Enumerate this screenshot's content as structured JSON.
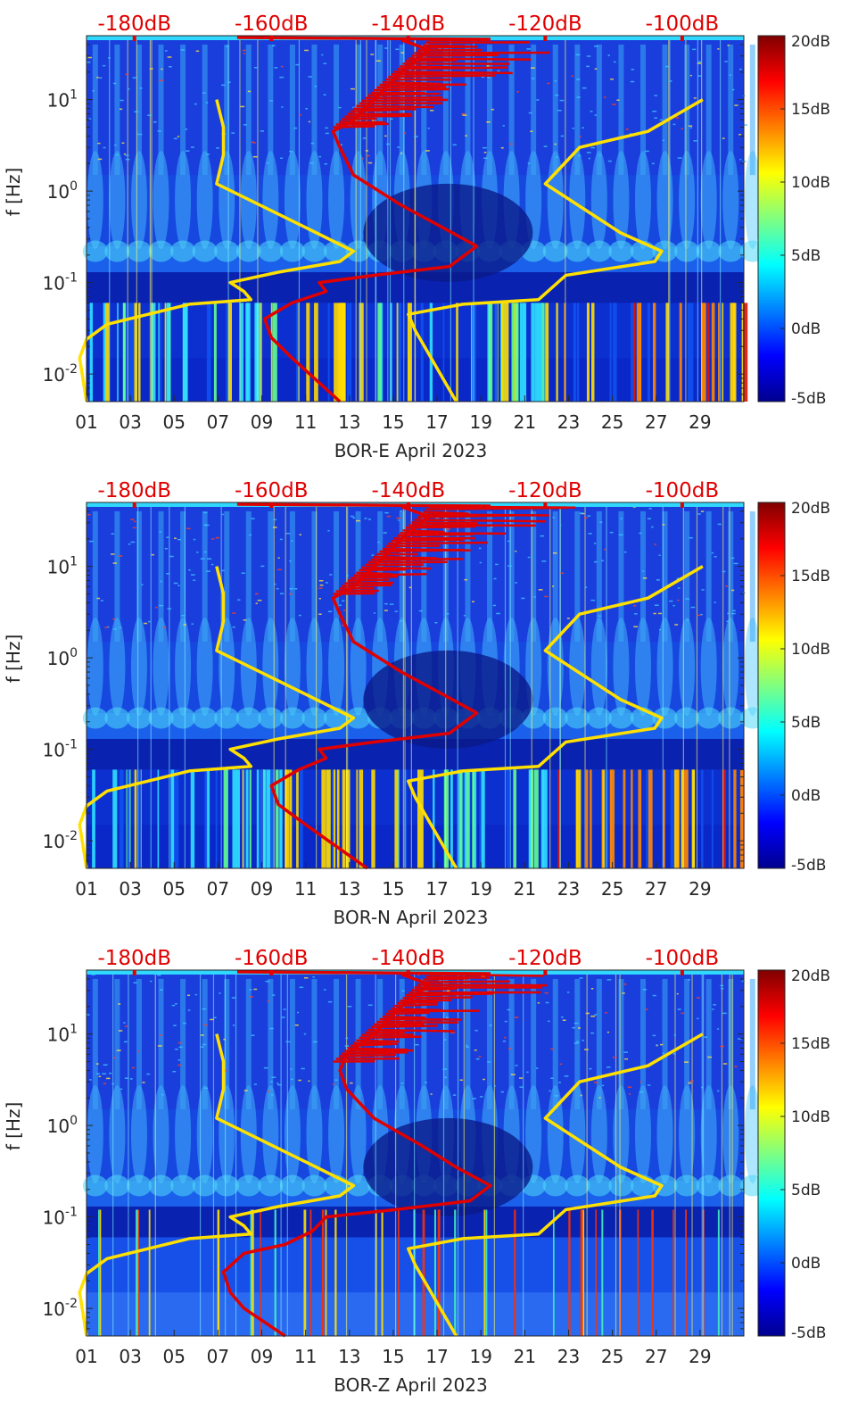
{
  "chart_data": [
    {
      "type": "heatmap",
      "title": "",
      "xlabel": "BOR-E April 2023",
      "ylabel": "f [Hz]",
      "x_ticks": [
        "01",
        "03",
        "05",
        "07",
        "09",
        "11",
        "13",
        "15",
        "17",
        "19",
        "21",
        "23",
        "25",
        "27",
        "29"
      ],
      "x_range_days": [
        1,
        31
      ],
      "y_scale": "log",
      "y_range_hz": [
        0.005,
        50
      ],
      "y_ticks": [
        {
          "value": 0.01,
          "base": "10",
          "exp": "-2"
        },
        {
          "value": 0.1,
          "base": "10",
          "exp": "-1"
        },
        {
          "value": 1,
          "base": "10",
          "exp": "0"
        },
        {
          "value": 10,
          "base": "10",
          "exp": "1"
        }
      ],
      "top_axis_ticks": [
        "-180dB",
        "-160dB",
        "-140dB",
        "-120dB",
        "-100dB"
      ],
      "top_axis_range_db": [
        -187,
        -91
      ],
      "colorbar": {
        "ticks": [
          "20dB",
          "15dB",
          "10dB",
          "5dB",
          "0dB",
          "-5dB"
        ],
        "range_db": [
          -5,
          20
        ]
      },
      "series": [
        {
          "name": "noise model low (yellow)",
          "color": "#ffe000",
          "points": [
            [
              -187,
              0.005
            ],
            [
              -188,
              0.015
            ],
            [
              -187,
              0.024
            ],
            [
              -184,
              0.035
            ],
            [
              -178,
              0.045
            ],
            [
              -172,
              0.058
            ],
            [
              -163,
              0.065
            ],
            [
              -164,
              0.08
            ],
            [
              -166,
              0.1
            ],
            [
              -159,
              0.13
            ],
            [
              -150,
              0.17
            ],
            [
              -148,
              0.22
            ],
            [
              -155,
              0.4
            ],
            [
              -168,
              1.2
            ],
            [
              -167,
              2.5
            ],
            [
              -167,
              5
            ],
            [
              -168,
              10
            ]
          ]
        },
        {
          "name": "noise model high (yellow)",
          "color": "#ffe000",
          "points": [
            [
              -133,
              0.005
            ],
            [
              -139,
              0.03
            ],
            [
              -140,
              0.045
            ],
            [
              -132,
              0.058
            ],
            [
              -121,
              0.065
            ],
            [
              -117,
              0.12
            ],
            [
              -104,
              0.17
            ],
            [
              -103,
              0.22
            ],
            [
              -109,
              0.35
            ],
            [
              -120,
              1.2
            ],
            [
              -115,
              3
            ],
            [
              -105,
              4.5
            ],
            [
              -97,
              10
            ]
          ]
        },
        {
          "name": "PSD (red)",
          "color": "#e00000",
          "points": [
            [
              -150,
              0.005
            ],
            [
              -157,
              0.015
            ],
            [
              -160,
              0.025
            ],
            [
              -161,
              0.04
            ],
            [
              -157,
              0.06
            ],
            [
              -152,
              0.08
            ],
            [
              -153,
              0.1
            ],
            [
              -145,
              0.12
            ],
            [
              -134,
              0.15
            ],
            [
              -130,
              0.25
            ],
            [
              -135,
              0.4
            ],
            [
              -141,
              0.7
            ],
            [
              -148,
              1.5
            ],
            [
              -150,
              3
            ],
            [
              -151,
              4.5
            ],
            [
              -148,
              6
            ],
            [
              -145,
              10
            ],
            [
              -141,
              20
            ],
            [
              -137,
              35
            ],
            [
              -141,
              45
            ]
          ]
        }
      ]
    },
    {
      "type": "heatmap",
      "title": "",
      "xlabel": "BOR-N April 2023",
      "ylabel": "f [Hz]",
      "x_ticks": [
        "01",
        "03",
        "05",
        "07",
        "09",
        "11",
        "13",
        "15",
        "17",
        "19",
        "21",
        "23",
        "25",
        "27",
        "29"
      ],
      "x_range_days": [
        1,
        31
      ],
      "y_scale": "log",
      "y_range_hz": [
        0.005,
        50
      ],
      "y_ticks": [
        {
          "value": 0.01,
          "base": "10",
          "exp": "-2"
        },
        {
          "value": 0.1,
          "base": "10",
          "exp": "-1"
        },
        {
          "value": 1,
          "base": "10",
          "exp": "0"
        },
        {
          "value": 10,
          "base": "10",
          "exp": "1"
        }
      ],
      "top_axis_ticks": [
        "-180dB",
        "-160dB",
        "-140dB",
        "-120dB",
        "-100dB"
      ],
      "top_axis_range_db": [
        -187,
        -91
      ],
      "colorbar": {
        "ticks": [
          "20dB",
          "15dB",
          "10dB",
          "5dB",
          "0dB",
          "-5dB"
        ],
        "range_db": [
          -5,
          20
        ]
      },
      "series": [
        {
          "name": "noise model low (yellow)",
          "color": "#ffe000",
          "points": [
            [
              -187,
              0.005
            ],
            [
              -188,
              0.015
            ],
            [
              -187,
              0.024
            ],
            [
              -184,
              0.035
            ],
            [
              -178,
              0.045
            ],
            [
              -172,
              0.058
            ],
            [
              -163,
              0.065
            ],
            [
              -164,
              0.08
            ],
            [
              -166,
              0.1
            ],
            [
              -159,
              0.13
            ],
            [
              -150,
              0.17
            ],
            [
              -148,
              0.22
            ],
            [
              -155,
              0.4
            ],
            [
              -168,
              1.2
            ],
            [
              -167,
              2.5
            ],
            [
              -167,
              5
            ],
            [
              -168,
              10
            ]
          ]
        },
        {
          "name": "noise model high (yellow)",
          "color": "#ffe000",
          "points": [
            [
              -133,
              0.005
            ],
            [
              -139,
              0.03
            ],
            [
              -140,
              0.045
            ],
            [
              -132,
              0.058
            ],
            [
              -121,
              0.065
            ],
            [
              -117,
              0.12
            ],
            [
              -104,
              0.17
            ],
            [
              -103,
              0.22
            ],
            [
              -109,
              0.35
            ],
            [
              -120,
              1.2
            ],
            [
              -115,
              3
            ],
            [
              -105,
              4.5
            ],
            [
              -97,
              10
            ]
          ]
        },
        {
          "name": "PSD (red)",
          "color": "#e00000",
          "points": [
            [
              -146,
              0.005
            ],
            [
              -155,
              0.015
            ],
            [
              -159,
              0.025
            ],
            [
              -160,
              0.04
            ],
            [
              -156,
              0.06
            ],
            [
              -152,
              0.08
            ],
            [
              -153,
              0.1
            ],
            [
              -145,
              0.12
            ],
            [
              -134,
              0.15
            ],
            [
              -130,
              0.25
            ],
            [
              -135,
              0.4
            ],
            [
              -141,
              0.7
            ],
            [
              -148,
              1.5
            ],
            [
              -150,
              3
            ],
            [
              -151,
              4.5
            ],
            [
              -148,
              6
            ],
            [
              -145,
              10
            ],
            [
              -141,
              20
            ],
            [
              -137,
              35
            ],
            [
              -141,
              45
            ]
          ]
        }
      ]
    },
    {
      "type": "heatmap",
      "title": "",
      "xlabel": "BOR-Z April 2023",
      "ylabel": "f [Hz]",
      "x_ticks": [
        "01",
        "03",
        "05",
        "07",
        "09",
        "11",
        "13",
        "15",
        "17",
        "19",
        "21",
        "23",
        "25",
        "27",
        "29"
      ],
      "x_range_days": [
        1,
        31
      ],
      "y_scale": "log",
      "y_range_hz": [
        0.005,
        50
      ],
      "y_ticks": [
        {
          "value": 0.01,
          "base": "10",
          "exp": "-2"
        },
        {
          "value": 0.1,
          "base": "10",
          "exp": "-1"
        },
        {
          "value": 1,
          "base": "10",
          "exp": "0"
        },
        {
          "value": 10,
          "base": "10",
          "exp": "1"
        }
      ],
      "top_axis_ticks": [
        "-180dB",
        "-160dB",
        "-140dB",
        "-120dB",
        "-100dB"
      ],
      "top_axis_range_db": [
        -187,
        -91
      ],
      "colorbar": {
        "ticks": [
          "20dB",
          "15dB",
          "10dB",
          "5dB",
          "0dB",
          "-5dB"
        ],
        "range_db": [
          -5,
          20
        ]
      },
      "series": [
        {
          "name": "noise model low (yellow)",
          "color": "#ffe000",
          "points": [
            [
              -187,
              0.005
            ],
            [
              -188,
              0.015
            ],
            [
              -187,
              0.024
            ],
            [
              -184,
              0.035
            ],
            [
              -178,
              0.045
            ],
            [
              -172,
              0.058
            ],
            [
              -163,
              0.065
            ],
            [
              -164,
              0.08
            ],
            [
              -166,
              0.1
            ],
            [
              -159,
              0.13
            ],
            [
              -150,
              0.17
            ],
            [
              -148,
              0.22
            ],
            [
              -155,
              0.4
            ],
            [
              -168,
              1.2
            ],
            [
              -167,
              2.5
            ],
            [
              -167,
              5
            ],
            [
              -168,
              10
            ]
          ]
        },
        {
          "name": "noise model high (yellow)",
          "color": "#ffe000",
          "points": [
            [
              -133,
              0.005
            ],
            [
              -139,
              0.03
            ],
            [
              -140,
              0.045
            ],
            [
              -132,
              0.058
            ],
            [
              -121,
              0.065
            ],
            [
              -117,
              0.12
            ],
            [
              -104,
              0.17
            ],
            [
              -103,
              0.22
            ],
            [
              -109,
              0.35
            ],
            [
              -120,
              1.2
            ],
            [
              -115,
              3
            ],
            [
              -105,
              4.5
            ],
            [
              -97,
              10
            ]
          ]
        },
        {
          "name": "PSD (red)",
          "color": "#e00000",
          "points": [
            [
              -158,
              0.005
            ],
            [
              -164,
              0.01
            ],
            [
              -166,
              0.015
            ],
            [
              -167,
              0.025
            ],
            [
              -164,
              0.04
            ],
            [
              -158,
              0.05
            ],
            [
              -154,
              0.07
            ],
            [
              -152,
              0.1
            ],
            [
              -142,
              0.12
            ],
            [
              -131,
              0.15
            ],
            [
              -128,
              0.22
            ],
            [
              -133,
              0.35
            ],
            [
              -138,
              0.6
            ],
            [
              -145,
              1.2
            ],
            [
              -149,
              2.5
            ],
            [
              -150,
              4
            ],
            [
              -149,
              6
            ],
            [
              -145,
              10
            ],
            [
              -141,
              20
            ],
            [
              -137,
              35
            ],
            [
              -141,
              45
            ]
          ]
        }
      ]
    }
  ]
}
